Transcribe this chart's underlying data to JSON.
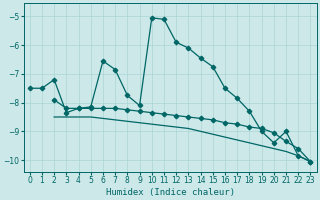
{
  "xlabel": "Humidex (Indice chaleur)",
  "bg_color": "#cce8e8",
  "line_color": "#006666",
  "grid_color": "#aad4d4",
  "xlim": [
    -0.5,
    23.5
  ],
  "ylim": [
    -10.4,
    -4.55
  ],
  "yticks": [
    -10,
    -9,
    -8,
    -7,
    -6,
    -5
  ],
  "xticks": [
    0,
    1,
    2,
    3,
    4,
    5,
    6,
    7,
    8,
    9,
    10,
    11,
    12,
    13,
    14,
    15,
    16,
    17,
    18,
    19,
    20,
    21,
    22,
    23
  ],
  "series1_x": [
    0,
    1,
    2,
    3,
    4,
    5,
    6,
    7,
    8,
    9,
    10,
    11,
    12,
    13,
    14,
    15,
    16,
    17,
    18,
    19,
    20,
    21,
    22,
    23
  ],
  "series1_y": [
    -7.5,
    -7.5,
    -7.2,
    -8.35,
    -8.2,
    -8.15,
    -6.55,
    -6.85,
    -7.75,
    -8.1,
    -5.05,
    -5.1,
    -5.9,
    -6.1,
    -6.45,
    -6.75,
    -7.5,
    -7.85,
    -8.3,
    -9.0,
    -9.4,
    -9.0,
    -9.85,
    -10.05
  ],
  "series2_x": [
    2,
    3,
    4,
    5,
    6,
    7,
    8,
    9,
    10,
    11,
    12,
    13,
    14,
    15,
    16,
    17,
    18,
    19,
    20,
    21,
    22,
    23
  ],
  "series2_y": [
    -7.9,
    -8.2,
    -8.2,
    -8.2,
    -8.2,
    -8.2,
    -8.25,
    -8.3,
    -8.35,
    -8.4,
    -8.45,
    -8.5,
    -8.55,
    -8.6,
    -8.7,
    -8.75,
    -8.85,
    -8.9,
    -9.05,
    -9.35,
    -9.6,
    -10.05
  ],
  "series3_x": [
    2,
    3,
    4,
    5,
    6,
    7,
    8,
    9,
    10,
    11,
    12,
    13,
    14,
    15,
    16,
    17,
    18,
    19,
    20,
    21,
    22,
    23
  ],
  "series3_y": [
    -8.5,
    -8.5,
    -8.5,
    -8.5,
    -8.55,
    -8.6,
    -8.65,
    -8.7,
    -8.75,
    -8.8,
    -8.85,
    -8.9,
    -9.0,
    -9.1,
    -9.2,
    -9.3,
    -9.4,
    -9.5,
    -9.6,
    -9.7,
    -9.85,
    -10.05
  ]
}
